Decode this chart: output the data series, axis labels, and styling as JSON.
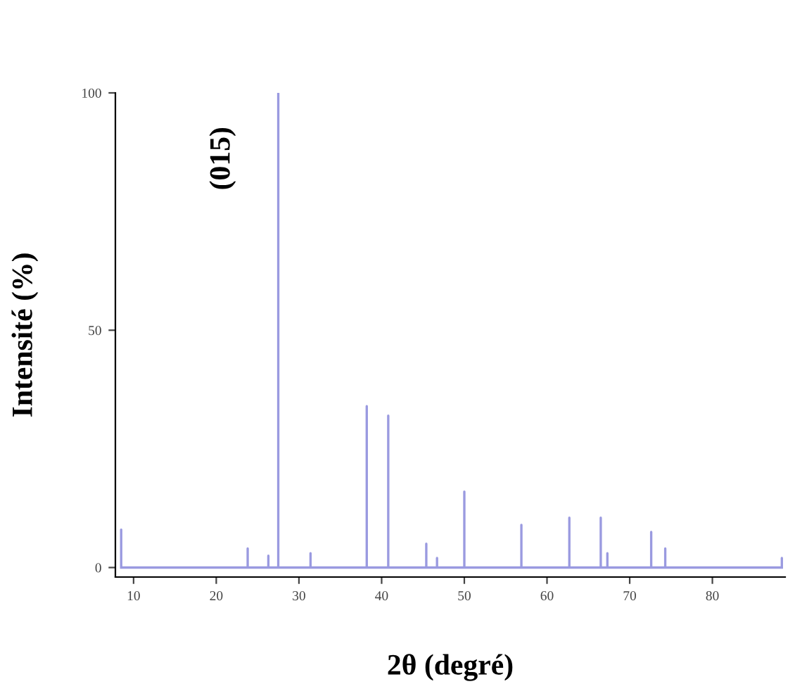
{
  "chart_data": {
    "type": "line",
    "xlabel": "2θ (degré)",
    "ylabel": "Intensité (%)",
    "annotations": [
      "(015)"
    ],
    "series": [
      {
        "color": "#9a9ae0",
        "x": [
          8.5,
          8.5,
          8.5,
          23.8,
          23.8,
          23.8,
          26.3,
          26.3,
          26.3,
          27.5,
          27.5,
          27.5,
          31.4,
          31.4,
          31.4,
          38.2,
          38.2,
          38.2,
          40.8,
          40.8,
          40.8,
          45.4,
          45.4,
          45.4,
          46.7,
          46.7,
          46.7,
          50.0,
          50.0,
          50.0,
          56.9,
          56.9,
          56.9,
          62.7,
          62.7,
          62.7,
          66.5,
          66.5,
          66.5,
          67.3,
          67.3,
          67.3,
          72.6,
          72.6,
          72.6,
          74.3,
          74.3,
          74.3,
          88.4,
          88.4,
          88.4
        ],
        "values": [
          0,
          8,
          0,
          0,
          4,
          0,
          0,
          2.5,
          0,
          0,
          100,
          0,
          0,
          3,
          0,
          0,
          34,
          0,
          0,
          32,
          0,
          0,
          5,
          0,
          0,
          2,
          0,
          0,
          16,
          0,
          0,
          9,
          0,
          0,
          10.5,
          0,
          0,
          10.5,
          0,
          0,
          3,
          0,
          0,
          7.5,
          0,
          0,
          4,
          0,
          0,
          2,
          0
        ]
      }
    ],
    "xlim": [
      7.8,
      88.8
    ],
    "ylim": [
      -2,
      100
    ],
    "xticks": [
      10,
      20,
      30,
      40,
      50,
      60,
      70,
      80
    ],
    "yticks": [
      0,
      50,
      100
    ],
    "grid": false,
    "legend": false,
    "marker": "none",
    "line_style": "solid"
  }
}
